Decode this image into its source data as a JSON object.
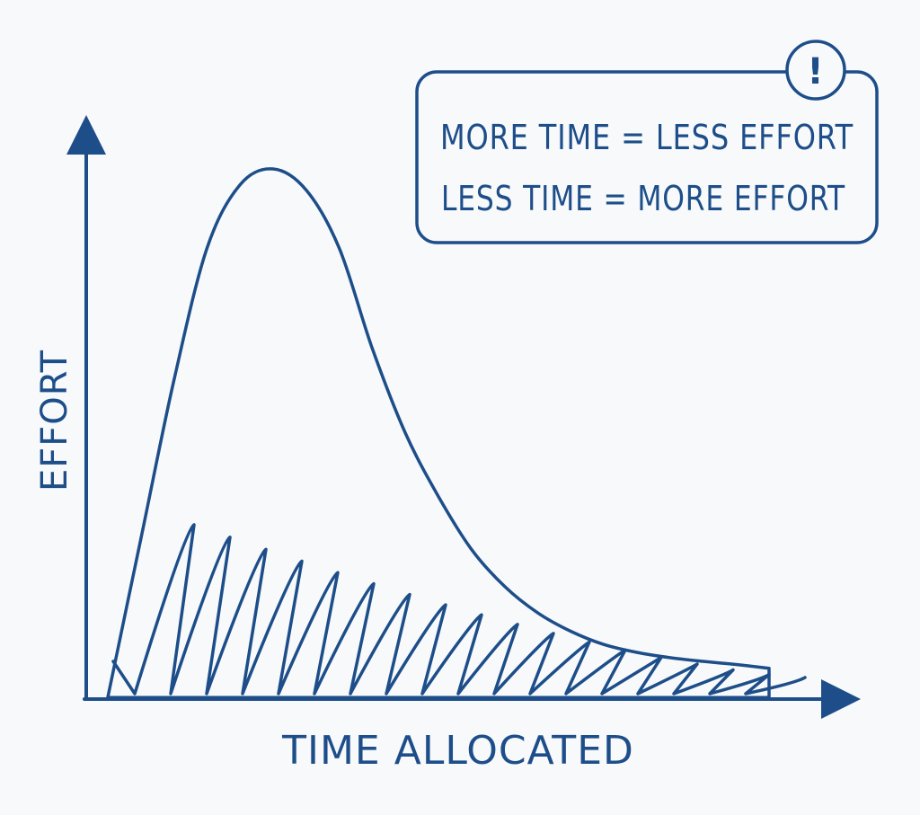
{
  "colors": {
    "ink": "#1d4e89",
    "background": "#f8f9fb"
  },
  "chart_data": {
    "type": "line",
    "title": "",
    "xlabel": "TIME ALLOCATED",
    "ylabel": "EFFORT",
    "grid": false,
    "shaded_area_under_curve": true,
    "x": [
      0,
      1,
      2,
      3,
      4,
      5,
      6,
      7,
      8,
      9,
      10,
      11,
      12,
      13,
      14,
      15,
      16,
      17,
      18,
      19,
      20
    ],
    "series": [
      {
        "values": [
          0,
          30,
          60,
          85,
          97,
          100,
          96,
          85,
          66,
          50,
          38,
          28,
          21,
          16,
          12.5,
          10,
          8.5,
          7.5,
          6.8,
          6.2,
          5.5
        ]
      }
    ],
    "xlim": [
      0,
      20
    ],
    "ylim": [
      0,
      110
    ]
  },
  "callout": {
    "icon": "exclamation-icon",
    "icon_text": "!",
    "line1": "MORE TIME = LESS EFFORT",
    "line2": "LESS TIME = MORE EFFORT"
  }
}
